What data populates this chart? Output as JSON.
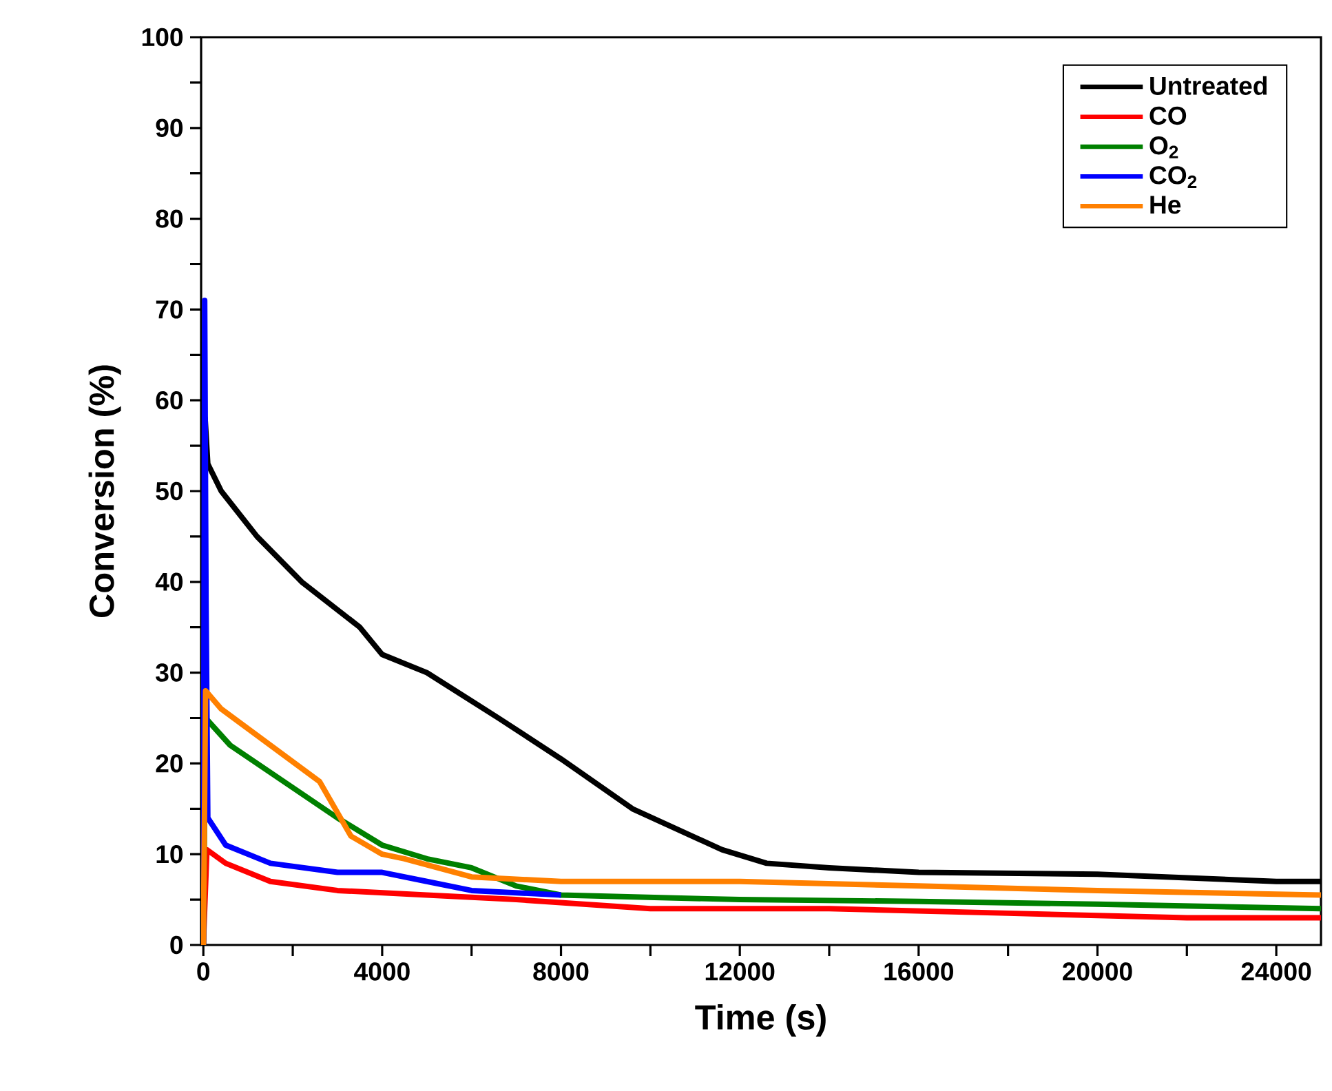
{
  "chart_data": {
    "type": "line",
    "xlabel": "Time (s)",
    "ylabel": "Conversion (%)",
    "xlim": [
      -50,
      25000
    ],
    "ylim": [
      0,
      100
    ],
    "xticks": [
      0,
      {
        "value": 2000,
        "label": null
      },
      4000,
      {
        "value": 6000,
        "label": null
      },
      8000,
      {
        "value": 10000,
        "label": null
      },
      12000,
      {
        "value": 14000,
        "label": null
      },
      16000,
      {
        "value": 18000,
        "label": null
      },
      20000,
      {
        "value": 22000,
        "label": null
      },
      24000
    ],
    "yticks": [
      0,
      {
        "value": 5,
        "label": null
      },
      10,
      {
        "value": 15,
        "label": null
      },
      20,
      {
        "value": 25,
        "label": null
      },
      30,
      {
        "value": 35,
        "label": null
      },
      40,
      {
        "value": 45,
        "label": null
      },
      50,
      {
        "value": 55,
        "label": null
      },
      60,
      {
        "value": 65,
        "label": null
      },
      70,
      {
        "value": 75,
        "label": null
      },
      80,
      {
        "value": 85,
        "label": null
      },
      90,
      {
        "value": 95,
        "label": null
      },
      100
    ],
    "legend": "top right",
    "grid": false,
    "marker": "none",
    "line_style": "solid",
    "series": [
      {
        "name": "Untreated",
        "color": "#000000",
        "x": [
          0,
          40,
          100,
          400,
          1200,
          2200,
          3500,
          4000,
          5000,
          6600,
          8000,
          9600,
          11600,
          12600,
          14000,
          16000,
          20000,
          24000,
          25000
        ],
        "values": [
          0,
          58,
          53,
          50,
          45,
          40,
          35,
          32,
          30,
          25,
          20.5,
          15,
          10.5,
          9,
          8.5,
          8,
          7.8,
          7,
          7
        ]
      },
      {
        "name": "CO",
        "color": "#ff0000",
        "x": [
          0,
          80,
          500,
          1500,
          3000,
          5000,
          7000,
          10000,
          14000,
          18000,
          22000,
          25000
        ],
        "values": [
          0,
          10.5,
          9,
          7,
          6,
          5.5,
          5,
          4,
          4,
          3.5,
          3,
          3
        ]
      },
      {
        "name": "O$_{2}$",
        "color": "#008000",
        "x": [
          0,
          50,
          600,
          1800,
          3000,
          4000,
          5000,
          6000,
          7000,
          8000,
          12000,
          16000,
          20000,
          25000
        ],
        "values": [
          0,
          25,
          22,
          18,
          14,
          11,
          9.5,
          8.5,
          6.5,
          5.5,
          5,
          4.8,
          4.5,
          4
        ]
      },
      {
        "name": "CO$_{2}$",
        "color": "#0000ff",
        "x": [
          0,
          30,
          60,
          100,
          500,
          1500,
          3000,
          4000,
          5000,
          6000,
          8000
        ],
        "values": [
          0,
          71,
          38,
          14,
          11,
          9,
          8,
          8,
          7,
          6,
          5.5
        ]
      },
      {
        "name": "He",
        "color": "#ff8000",
        "x": [
          0,
          50,
          400,
          1500,
          2600,
          3300,
          4000,
          4500,
          6000,
          8000,
          12000,
          16000,
          20000,
          25000
        ],
        "values": [
          0,
          28,
          26,
          22,
          18,
          12,
          10,
          9.5,
          7.5,
          7,
          7,
          6.5,
          6,
          5.5
        ]
      }
    ]
  }
}
